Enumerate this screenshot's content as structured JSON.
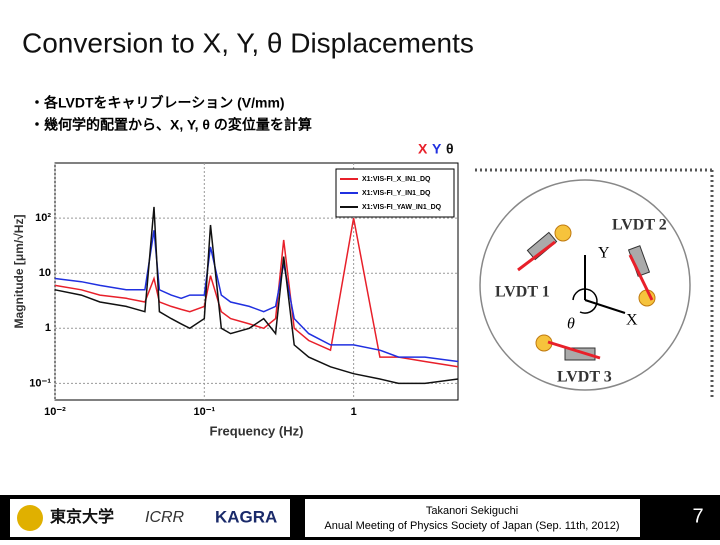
{
  "slide": {
    "title": "Conversion to X, Y, θ Displacements",
    "bullets": [
      "・各LVDTをキャリブレーション (V/mm)",
      "・幾何学的配置から、X, Y, θ の変位量を計算"
    ]
  },
  "chart_data": {
    "type": "line",
    "annotations": [
      "X",
      "Y",
      "θ"
    ],
    "xlabel": "Frequency (Hz)",
    "ylabel": "Magnitude  [μm/√Hz]",
    "xscale": "log",
    "yscale": "log",
    "xlim": [
      0.01,
      5
    ],
    "ylim": [
      0.05,
      1000
    ],
    "xticks": [
      {
        "value": 0.01,
        "label": "10⁻²"
      },
      {
        "value": 0.1,
        "label": "10⁻¹"
      },
      1
    ],
    "yticks": [
      {
        "value": 0.1,
        "label": "10⁻¹"
      },
      1,
      10,
      {
        "value": 100,
        "label": "10²"
      }
    ],
    "grid": true,
    "legend": "upper right",
    "x": [
      0.01,
      0.015,
      0.02,
      0.03,
      0.04,
      0.046,
      0.05,
      0.06,
      0.07,
      0.08,
      0.1,
      0.11,
      0.13,
      0.15,
      0.2,
      0.25,
      0.3,
      0.34,
      0.4,
      0.5,
      0.7,
      1,
      1.5,
      2,
      3,
      5
    ],
    "series": [
      {
        "name": "X1:VIS-FI_X_IN1_DQ",
        "color": "#e8202a",
        "values": [
          6,
          5,
          4,
          3.5,
          3,
          8,
          3,
          2.5,
          2.2,
          2,
          2.5,
          9,
          2,
          1.5,
          1.2,
          1,
          1.5,
          40,
          1,
          0.6,
          0.4,
          100,
          0.3,
          0.3,
          0.25,
          0.2
        ]
      },
      {
        "name": "X1:VIS-FI_Y_IN1_DQ",
        "color": "#2030e0",
        "values": [
          8,
          7,
          6,
          5,
          5,
          60,
          5,
          4,
          3.5,
          4,
          4,
          30,
          4,
          3,
          2.5,
          2,
          2.5,
          15,
          1.5,
          0.8,
          0.5,
          0.5,
          0.4,
          0.3,
          0.3,
          0.25
        ]
      },
      {
        "name": "X1:VIS-FI_YAW_IN1_DQ",
        "color": "#111111",
        "values": [
          5,
          4,
          3,
          2.5,
          2,
          160,
          2,
          1.5,
          1.2,
          1,
          1.5,
          75,
          1,
          0.8,
          1,
          1.5,
          0.8,
          20,
          0.5,
          0.3,
          0.2,
          0.15,
          0.12,
          0.1,
          0.1,
          0.12
        ]
      }
    ]
  },
  "diagram": {
    "labels": [
      "LVDT 2",
      "LVDT 1",
      "LVDT 3",
      "Y",
      "X",
      "θ"
    ]
  },
  "footer": {
    "logos": [
      "東京大学",
      "ICRR",
      "KAGRA"
    ],
    "author": "Takanori Sekiguchi",
    "event": "Anual Meeting of Physics Society of Japan (Sep. 11th, 2012)",
    "page": "7"
  }
}
